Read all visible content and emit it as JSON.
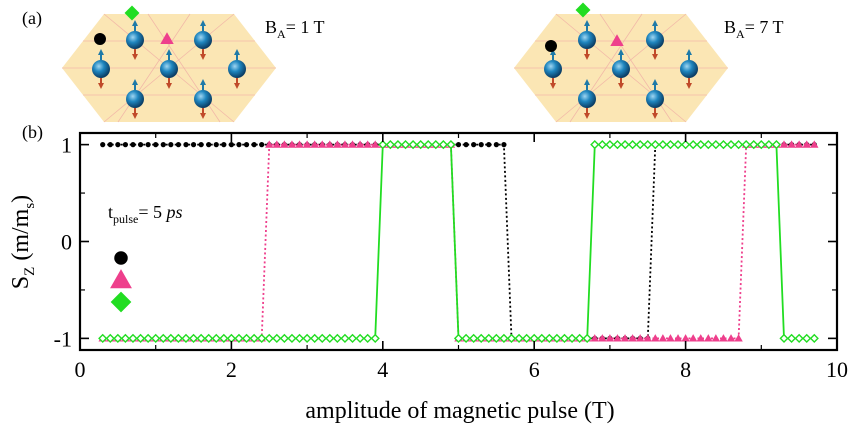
{
  "panel_a": {
    "label": "(a)",
    "left_field_label": "B",
    "left_field_sub": "A",
    "left_field_value": "= 1 T",
    "right_field_label": "B",
    "right_field_sub": "A",
    "right_field_value": "= 7 T",
    "lattice_color": "#fbe6b4",
    "spin_color": "#1a6fa0",
    "arrow_up_color": "#1e7aa8",
    "arrow_down_color": "#c04a2a"
  },
  "chart_data": {
    "type": "line",
    "panel_label": "(b)",
    "xlabel": "amplitude of magnetic pulse (T)",
    "ylabel_main": "S",
    "ylabel_sub": "Z",
    "ylabel_rest": " (m/m",
    "ylabel_rest_sub": "s",
    "ylabel_close": ")",
    "xlim": [
      0,
      10
    ],
    "ylim": [
      -1.12,
      1.12
    ],
    "xticks": [
      0,
      2,
      4,
      6,
      8,
      10
    ],
    "xtick_labels": [
      "0",
      "2",
      "4",
      "6",
      "8",
      "10"
    ],
    "yticks": [
      1,
      0,
      -1
    ],
    "ytick_labels": [
      "1",
      "0",
      "-1"
    ],
    "grid": false,
    "legend_placement": "left",
    "legend_title_main": "t",
    "legend_title_sub": "pulse",
    "legend_title_rest": "= 5 ",
    "legend_title_unit": "ps",
    "series": [
      {
        "marker": "circle",
        "color": "#000000",
        "line_style": "dotted",
        "x_start": 0.3,
        "x_end": 9.7,
        "step": 0.1,
        "segments": [
          {
            "from": 0.3,
            "to": 5.6,
            "value": 1
          },
          {
            "from": 5.7,
            "to": 7.5,
            "value": -1
          },
          {
            "from": 7.6,
            "to": 9.7,
            "value": 1
          }
        ]
      },
      {
        "marker": "triangle",
        "color": "#ee3f8c",
        "line_style": "dotted",
        "x_start": 0.3,
        "x_end": 9.7,
        "step": 0.1,
        "segments": [
          {
            "from": 0.3,
            "to": 2.4,
            "value": -1
          },
          {
            "from": 2.5,
            "to": 4.9,
            "value": 1
          },
          {
            "from": 5.0,
            "to": 8.7,
            "value": -1
          },
          {
            "from": 8.8,
            "to": 9.7,
            "value": 1
          }
        ]
      },
      {
        "marker": "diamond",
        "color": "#22dd22",
        "line_style": "solid",
        "x_start": 0.3,
        "x_end": 9.7,
        "step": 0.1,
        "segments": [
          {
            "from": 0.3,
            "to": 3.9,
            "value": -1
          },
          {
            "from": 4.0,
            "to": 4.9,
            "value": 1
          },
          {
            "from": 5.0,
            "to": 6.7,
            "value": -1
          },
          {
            "from": 6.8,
            "to": 9.2,
            "value": 1
          },
          {
            "from": 9.3,
            "to": 9.7,
            "value": -1
          }
        ]
      }
    ]
  }
}
